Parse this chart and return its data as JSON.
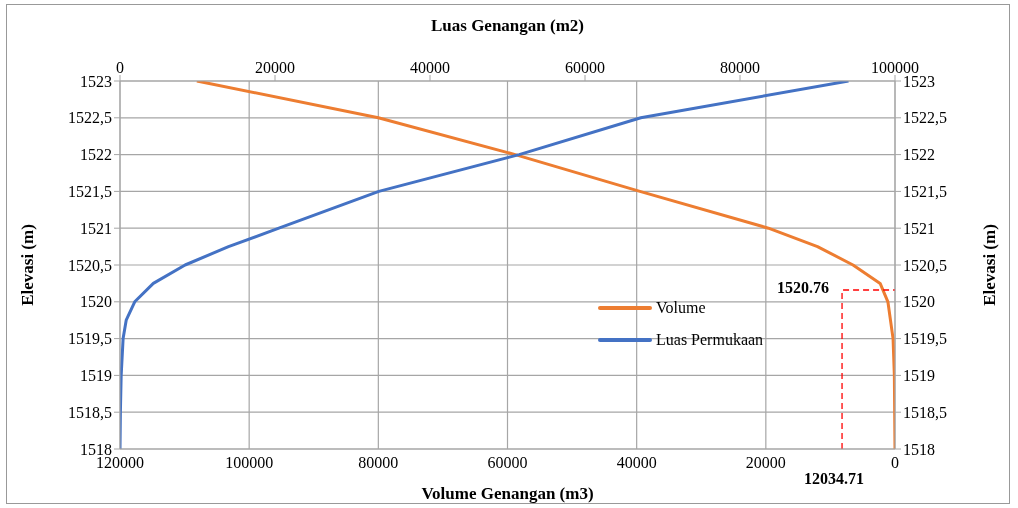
{
  "chart_data": {
    "type": "line",
    "xlabel": "Volume Genangan (m3)",
    "x2label": "Luas Genangan (m2)",
    "ylabel": "Elevasi (m)",
    "y2label": "Elevasi (m)",
    "xlim": [
      120000,
      0
    ],
    "xticks": [
      120000,
      100000,
      80000,
      60000,
      40000,
      20000,
      0
    ],
    "x2lim": [
      0,
      100000
    ],
    "x2ticks": [
      0,
      20000,
      40000,
      60000,
      80000,
      100000
    ],
    "ylim": [
      1518,
      1523
    ],
    "yticks": [
      1518,
      {
        "value": 1518.5,
        "label": "1518,5"
      },
      1519,
      {
        "value": 1519.5,
        "label": "1519,5"
      },
      1520,
      {
        "value": 1520.5,
        "label": "1520,5"
      },
      1521,
      {
        "value": 1521.5,
        "label": "1521,5"
      },
      1522,
      {
        "value": 1522.5,
        "label": "1522,5"
      },
      1523
    ],
    "y2lim": [
      1518,
      1523
    ],
    "y2ticks": [
      1518,
      {
        "value": 1518.5,
        "label": "1518,5"
      },
      1519,
      {
        "value": 1519.5,
        "label": "1519,5"
      },
      1520,
      {
        "value": 1520.5,
        "label": "1520,5"
      },
      1521,
      {
        "value": 1521.5,
        "label": "1521,5"
      },
      1522,
      {
        "value": 1522.5,
        "label": "1522,5"
      },
      1523
    ],
    "grid": true,
    "legend": "right",
    "series": [
      {
        "name": "Volume",
        "type": "line",
        "color": "#ed7d31",
        "x": [
          0,
          100,
          300,
          1100,
          2300,
          6500,
          12000,
          19600,
          39500,
          58800,
          80000,
          108100
        ],
        "values": [
          1518,
          1519,
          1519.5,
          1520,
          1520.25,
          1520.5,
          1520.75,
          1521,
          1521.5,
          1522,
          1522.5,
          1523
        ]
      },
      {
        "name": "Luas Permukaan",
        "type": "line",
        "axis": "x2",
        "color": "#4472c4",
        "x": [
          0,
          50,
          150,
          400,
          800,
          1900,
          4300,
          8400,
          14000,
          20500,
          33400,
          51500,
          67200,
          94000
        ],
        "values": [
          1518,
          1518.5,
          1519,
          1519.5,
          1519.75,
          1520,
          1520.25,
          1520.5,
          1520.75,
          1521,
          1521.5,
          1522,
          1522.5,
          1523
        ]
      },
      {
        "type": "line",
        "color": "#ff0000",
        "line_style": "dashed",
        "x": [
          8200,
          8200,
          0
        ],
        "values": [
          1518,
          1520.16,
          1520.16
        ]
      }
    ],
    "annotations": [
      "1520.76",
      "12034.71"
    ]
  }
}
